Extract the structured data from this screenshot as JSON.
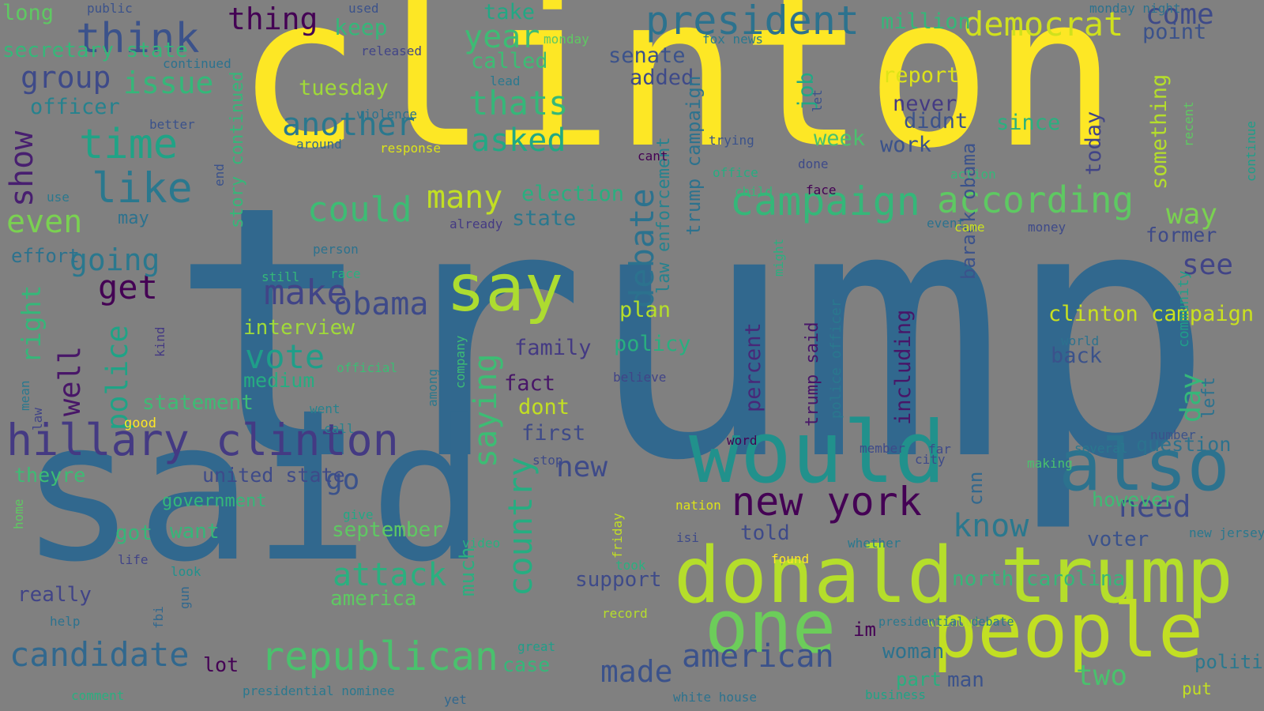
{
  "background": "#808080",
  "words": [
    {
      "text": "clinton",
      "color": "#fde725"
    },
    {
      "text": "trump",
      "color": "#31688e"
    },
    {
      "text": "said",
      "color": "#31688e"
    },
    {
      "text": "would",
      "color": "#21918c"
    },
    {
      "text": "donald trump",
      "color": "#b5de2b"
    },
    {
      "text": "people",
      "color": "#c2df23"
    },
    {
      "text": "one",
      "color": "#6ccd5a"
    },
    {
      "text": "also",
      "color": "#2c728e"
    },
    {
      "text": "say",
      "color": "#addc30"
    },
    {
      "text": "hillary clinton",
      "color": "#443a83"
    },
    {
      "text": "president",
      "color": "#2c728e"
    },
    {
      "text": "new york",
      "color": "#440154"
    },
    {
      "text": "republican",
      "color": "#4ac16d"
    },
    {
      "text": "campaign",
      "color": "#35b779"
    },
    {
      "text": "according",
      "color": "#5ec962"
    },
    {
      "text": "democrat",
      "color": "#d0e11c"
    },
    {
      "text": "think",
      "color": "#3b528b"
    },
    {
      "text": "thing",
      "color": "#440154"
    },
    {
      "text": "like",
      "color": "#2a788e"
    },
    {
      "text": "time",
      "color": "#20a386"
    },
    {
      "text": "candidate",
      "color": "#31688e"
    },
    {
      "text": "american",
      "color": "#3b528b"
    },
    {
      "text": "could",
      "color": "#3dbc74"
    },
    {
      "text": "issue",
      "color": "#35b779"
    },
    {
      "text": "group",
      "color": "#3e4a89"
    },
    {
      "text": "another",
      "color": "#2a788e"
    },
    {
      "text": "thats",
      "color": "#35b779"
    },
    {
      "text": "asked",
      "color": "#22a884"
    },
    {
      "text": "many",
      "color": "#c2df23"
    },
    {
      "text": "year",
      "color": "#3dbc74"
    },
    {
      "text": "come",
      "color": "#3e4a89"
    },
    {
      "text": "know",
      "color": "#2a788e"
    },
    {
      "text": "attack",
      "color": "#2ab07f"
    },
    {
      "text": "vote",
      "color": "#1f9e89"
    },
    {
      "text": "make",
      "color": "#414487"
    },
    {
      "text": "get",
      "color": "#440154"
    },
    {
      "text": "even",
      "color": "#7ad151"
    },
    {
      "text": "going",
      "color": "#2a788e"
    },
    {
      "text": "show",
      "color": "#481f70"
    },
    {
      "text": "well",
      "color": "#481668"
    },
    {
      "text": "police",
      "color": "#20a386"
    },
    {
      "text": "right",
      "color": "#35b779"
    },
    {
      "text": "obama",
      "color": "#3e4a89"
    },
    {
      "text": "go",
      "color": "#3b528b"
    },
    {
      "text": "new",
      "color": "#3e4a89"
    },
    {
      "text": "made",
      "color": "#3b528b"
    },
    {
      "text": "two",
      "color": "#4ac16d"
    },
    {
      "text": "need",
      "color": "#3e4a89"
    },
    {
      "text": "way",
      "color": "#7ad151"
    },
    {
      "text": "see",
      "color": "#414487"
    },
    {
      "text": "day",
      "color": "#35b779"
    },
    {
      "text": "saying",
      "color": "#3dbc74"
    },
    {
      "text": "country",
      "color": "#26ad81"
    },
    {
      "text": "debate",
      "color": "#2c728e"
    },
    {
      "text": "state",
      "color": "#2a788e"
    },
    {
      "text": "election",
      "color": "#29af7f"
    },
    {
      "text": "called",
      "color": "#3dbc74"
    },
    {
      "text": "senate",
      "color": "#3b528b"
    },
    {
      "text": "added",
      "color": "#3e4a89"
    },
    {
      "text": "take",
      "color": "#22a884"
    },
    {
      "text": "million",
      "color": "#35b779"
    },
    {
      "text": "point",
      "color": "#3b528b"
    },
    {
      "text": "report",
      "color": "#dde318"
    },
    {
      "text": "never",
      "color": "#443a83"
    },
    {
      "text": "didnt",
      "color": "#3b528b"
    },
    {
      "text": "work",
      "color": "#3b528b"
    },
    {
      "text": "since",
      "color": "#2ab07f"
    },
    {
      "text": "week",
      "color": "#4ac16d"
    },
    {
      "text": "job",
      "color": "#22a884"
    },
    {
      "text": "today",
      "color": "#414487"
    },
    {
      "text": "something",
      "color": "#b5de2b"
    },
    {
      "text": "former",
      "color": "#3e4a89"
    },
    {
      "text": "tuesday",
      "color": "#a0da39"
    },
    {
      "text": "officer",
      "color": "#26828e"
    },
    {
      "text": "story continued",
      "color": "#35b779"
    },
    {
      "text": "law enforcement",
      "color": "#26828e"
    },
    {
      "text": "trump campaign",
      "color": "#2c728e"
    },
    {
      "text": "plan",
      "color": "#b5de2b"
    },
    {
      "text": "policy",
      "color": "#29af7f"
    },
    {
      "text": "family",
      "color": "#443a83"
    },
    {
      "text": "fact",
      "color": "#481668"
    },
    {
      "text": "dont",
      "color": "#c2df23"
    },
    {
      "text": "first",
      "color": "#3e4a89"
    },
    {
      "text": "percent",
      "color": "#482878"
    },
    {
      "text": "trump said",
      "color": "#481668"
    },
    {
      "text": "including",
      "color": "#481668"
    },
    {
      "text": "barack obama",
      "color": "#3b528b"
    },
    {
      "text": "cnn",
      "color": "#31688e"
    },
    {
      "text": "police officer",
      "color": "#2a788e"
    },
    {
      "text": "clinton campaign",
      "color": "#cae11f"
    },
    {
      "text": "back",
      "color": "#3b528b"
    },
    {
      "text": "world",
      "color": "#2c728e"
    },
    {
      "text": "left",
      "color": "#2c728e"
    },
    {
      "text": "community",
      "color": "#1f9e89"
    },
    {
      "text": "theyre",
      "color": "#3dbc74"
    },
    {
      "text": "united state",
      "color": "#3e4a89"
    },
    {
      "text": "interview",
      "color": "#a0da39"
    },
    {
      "text": "medium",
      "color": "#26ad81"
    },
    {
      "text": "statement",
      "color": "#3dbc74"
    },
    {
      "text": "good",
      "color": "#fde725"
    },
    {
      "text": "government",
      "color": "#35b779"
    },
    {
      "text": "got",
      "color": "#35b779"
    },
    {
      "text": "want",
      "color": "#35b779"
    },
    {
      "text": "september",
      "color": "#5ec962"
    },
    {
      "text": "really",
      "color": "#414487"
    },
    {
      "text": "america",
      "color": "#5ec962"
    },
    {
      "text": "support",
      "color": "#3e4a89"
    },
    {
      "text": "much",
      "color": "#2ab07f"
    },
    {
      "text": "north carolina",
      "color": "#35b779"
    },
    {
      "text": "told",
      "color": "#3e4a89"
    },
    {
      "text": "voter",
      "color": "#3b528b"
    },
    {
      "text": "question",
      "color": "#2c728e"
    },
    {
      "text": "however",
      "color": "#3dbc74"
    },
    {
      "text": "im",
      "color": "#440154"
    },
    {
      "text": "woman",
      "color": "#2c728e"
    },
    {
      "text": "part",
      "color": "#29af7f"
    },
    {
      "text": "man",
      "color": "#3b528b"
    },
    {
      "text": "political",
      "color": "#2a788e"
    },
    {
      "text": "put",
      "color": "#c2df23"
    },
    {
      "text": "lot",
      "color": "#440154"
    },
    {
      "text": "case",
      "color": "#35b779"
    },
    {
      "text": "comment",
      "color": "#29af7f"
    },
    {
      "text": "presidential nominee",
      "color": "#2a788e"
    },
    {
      "text": "yet",
      "color": "#31688e"
    },
    {
      "text": "white house",
      "color": "#2c728e"
    },
    {
      "text": "business",
      "color": "#20a386"
    },
    {
      "text": "without",
      "color": "#b5de2b"
    },
    {
      "text": "presidential debate",
      "color": "#2a788e"
    },
    {
      "text": "great",
      "color": "#1f9e89"
    },
    {
      "text": "record",
      "color": "#b5de2b"
    },
    {
      "text": "took",
      "color": "#2ab07f"
    },
    {
      "text": "friday",
      "color": "#c2df23"
    },
    {
      "text": "isi",
      "color": "#3e4a89"
    },
    {
      "text": "nation",
      "color": "#dde318"
    },
    {
      "text": "found",
      "color": "#fde725"
    },
    {
      "text": "whether",
      "color": "#2a788e"
    },
    {
      "text": "new jersey",
      "color": "#2a788e"
    },
    {
      "text": "making",
      "color": "#4ac16d"
    },
    {
      "text": "several",
      "color": "#2a788e"
    },
    {
      "text": "number",
      "color": "#3b528b"
    },
    {
      "text": "word",
      "color": "#440154"
    },
    {
      "text": "member",
      "color": "#3e4a89"
    },
    {
      "text": "far",
      "color": "#3e4a89"
    },
    {
      "text": "city",
      "color": "#3e4a89"
    },
    {
      "text": "stop",
      "color": "#3e4a89"
    },
    {
      "text": "give",
      "color": "#22a884"
    },
    {
      "text": "video",
      "color": "#2ab07f"
    },
    {
      "text": "look",
      "color": "#21918c"
    },
    {
      "text": "life",
      "color": "#414487"
    },
    {
      "text": "fbi",
      "color": "#31688e"
    },
    {
      "text": "gun",
      "color": "#31688e"
    },
    {
      "text": "help",
      "color": "#2c728e"
    },
    {
      "text": "home",
      "color": "#5ec962"
    },
    {
      "text": "call",
      "color": "#26828e"
    },
    {
      "text": "went",
      "color": "#26828e"
    },
    {
      "text": "official",
      "color": "#3dbc74"
    },
    {
      "text": "kind",
      "color": "#443a83"
    },
    {
      "text": "mean",
      "color": "#2a788e"
    },
    {
      "text": "law",
      "color": "#414487"
    },
    {
      "text": "among",
      "color": "#2a788e"
    },
    {
      "text": "company",
      "color": "#3dbc74"
    },
    {
      "text": "believe",
      "color": "#414487"
    },
    {
      "text": "effort",
      "color": "#2c728e"
    },
    {
      "text": "may",
      "color": "#2c728e"
    },
    {
      "text": "still",
      "color": "#35b779"
    },
    {
      "text": "race",
      "color": "#2ab07f"
    },
    {
      "text": "person",
      "color": "#2c728e"
    },
    {
      "text": "already",
      "color": "#443a83"
    },
    {
      "text": "event",
      "color": "#2c728e"
    },
    {
      "text": "came",
      "color": "#cae11f"
    },
    {
      "text": "money",
      "color": "#3e4a89"
    },
    {
      "text": "might",
      "color": "#2ab07f"
    },
    {
      "text": "child",
      "color": "#35b779"
    },
    {
      "text": "face",
      "color": "#440154"
    },
    {
      "text": "office",
      "color": "#26ad81"
    },
    {
      "text": "trying",
      "color": "#3b528b"
    },
    {
      "text": "cant",
      "color": "#440154"
    },
    {
      "text": "done",
      "color": "#3e4a89"
    },
    {
      "text": "action",
      "color": "#35b779"
    },
    {
      "text": "let",
      "color": "#3b528b"
    },
    {
      "text": "use",
      "color": "#2a788e"
    },
    {
      "text": "end",
      "color": "#3b528b"
    },
    {
      "text": "around",
      "color": "#31688e"
    },
    {
      "text": "response",
      "color": "#dde318"
    },
    {
      "text": "better",
      "color": "#3b528b"
    },
    {
      "text": "violence",
      "color": "#2c728e"
    },
    {
      "text": "lead",
      "color": "#2a788e"
    },
    {
      "text": "continued",
      "color": "#2c728e"
    },
    {
      "text": "released",
      "color": "#414487"
    },
    {
      "text": "keep",
      "color": "#35b779"
    },
    {
      "text": "used",
      "color": "#3b528b"
    },
    {
      "text": "long",
      "color": "#5ec962"
    },
    {
      "text": "public",
      "color": "#3b528b"
    },
    {
      "text": "secretary state",
      "color": "#35b779"
    },
    {
      "text": "monday",
      "color": "#5ec962"
    },
    {
      "text": "fox news",
      "color": "#2a788e"
    },
    {
      "text": "monday night",
      "color": "#2c728e"
    },
    {
      "text": "recent",
      "color": "#5ec962"
    },
    {
      "text": "continue",
      "color": "#1f9e89"
    },
    {
      "text": "republican nominee",
      "color": "#21918c"
    }
  ]
}
